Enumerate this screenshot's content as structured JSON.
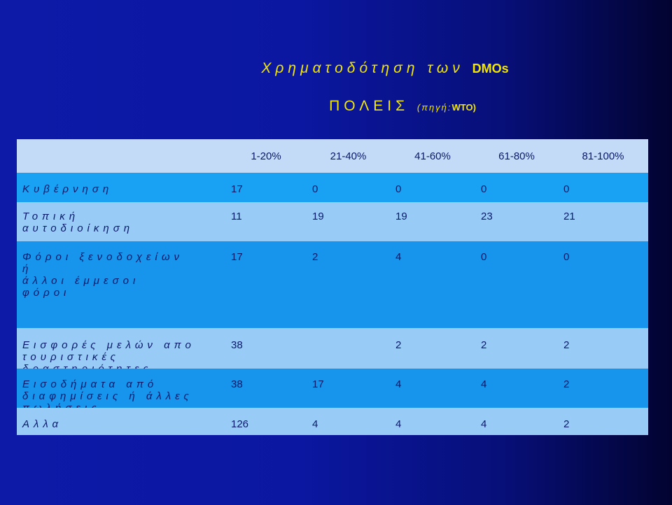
{
  "slide": {
    "title_main": "Χρηματοδότηση των",
    "title_main_suffix": "DMOs",
    "title_sub": "ΠΟΛΕΙΣ",
    "source_prefix": "(πηγή:",
    "source_name": "WTO)"
  },
  "table": {
    "columns": [
      "1-20%",
      "21-40%",
      "41-60%",
      "61-80%",
      "81-100%"
    ],
    "rows": [
      {
        "label_lines": [
          "Κυβέρνηση"
        ],
        "values": [
          "17",
          "0",
          "0",
          "0",
          "0"
        ]
      },
      {
        "label_lines": [
          "Τοπική",
          "αυτοδιοίκηση"
        ],
        "values": [
          "11",
          "19",
          "19",
          "23",
          "21"
        ]
      },
      {
        "label_lines": [
          "Φόροι ξενοδοχείων",
          "ή",
          "άλλοι έμμεσοι",
          "φόροι"
        ],
        "values": [
          "17",
          "2",
          "4",
          "0",
          "0"
        ]
      },
      {
        "label_lines": [
          "Εισφορές μελών απο",
          "τουριστικές",
          "δραστηριότητες"
        ],
        "values": [
          "38",
          "",
          "2",
          "2",
          "2"
        ]
      },
      {
        "label_lines": [
          "Εισοδήματα από",
          "διαφημίσεις ή άλλες",
          "πωλήσεις"
        ],
        "values": [
          "38",
          "17",
          "4",
          "4",
          "2"
        ]
      },
      {
        "label_lines": [
          "Αλλα"
        ],
        "values": [
          "126",
          "4",
          "4",
          "4",
          "2"
        ]
      }
    ]
  }
}
